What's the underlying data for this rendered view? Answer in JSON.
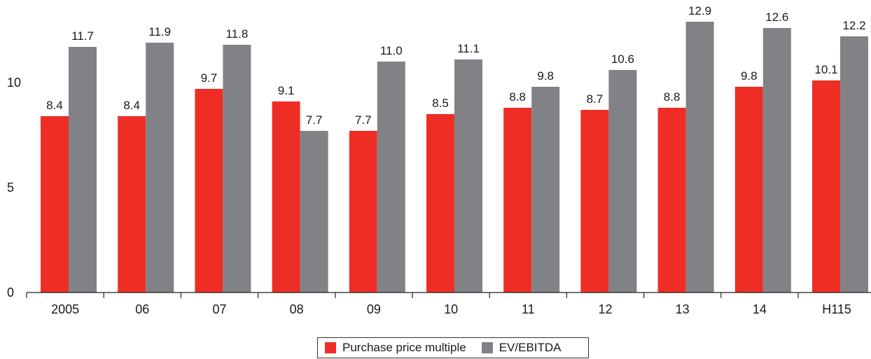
{
  "chart_data": {
    "type": "bar",
    "categories": [
      "2005",
      "06",
      "07",
      "08",
      "09",
      "10",
      "11",
      "12",
      "13",
      "14",
      "H115"
    ],
    "series": [
      {
        "name": "Purchase price multiple",
        "color": "#ee2e24",
        "values": [
          8.4,
          8.4,
          9.7,
          9.1,
          7.7,
          8.5,
          8.8,
          8.7,
          8.8,
          9.8,
          10.1
        ],
        "labels": [
          "8.4",
          "8.4",
          "9.7",
          "9.1",
          "7.7",
          "8.5",
          "8.8",
          "8.7",
          "8.8",
          "9.8",
          "10.1"
        ]
      },
      {
        "name": "EV/EBITDA",
        "color": "#818285",
        "values": [
          11.7,
          11.9,
          11.8,
          7.7,
          11.0,
          11.1,
          9.8,
          10.6,
          12.9,
          12.6,
          12.2
        ],
        "labels": [
          "11.7",
          "11.9",
          "11.8",
          "7.7",
          "11.0",
          "11.1",
          "9.8",
          "10.6",
          "12.9",
          "12.6",
          "12.2"
        ]
      }
    ],
    "yticks": [
      0,
      5,
      10
    ],
    "yticks_labels": [
      "0",
      "5",
      "10"
    ],
    "ylim": [
      0,
      13
    ],
    "grid": false,
    "legend_position": "bottom-center"
  }
}
